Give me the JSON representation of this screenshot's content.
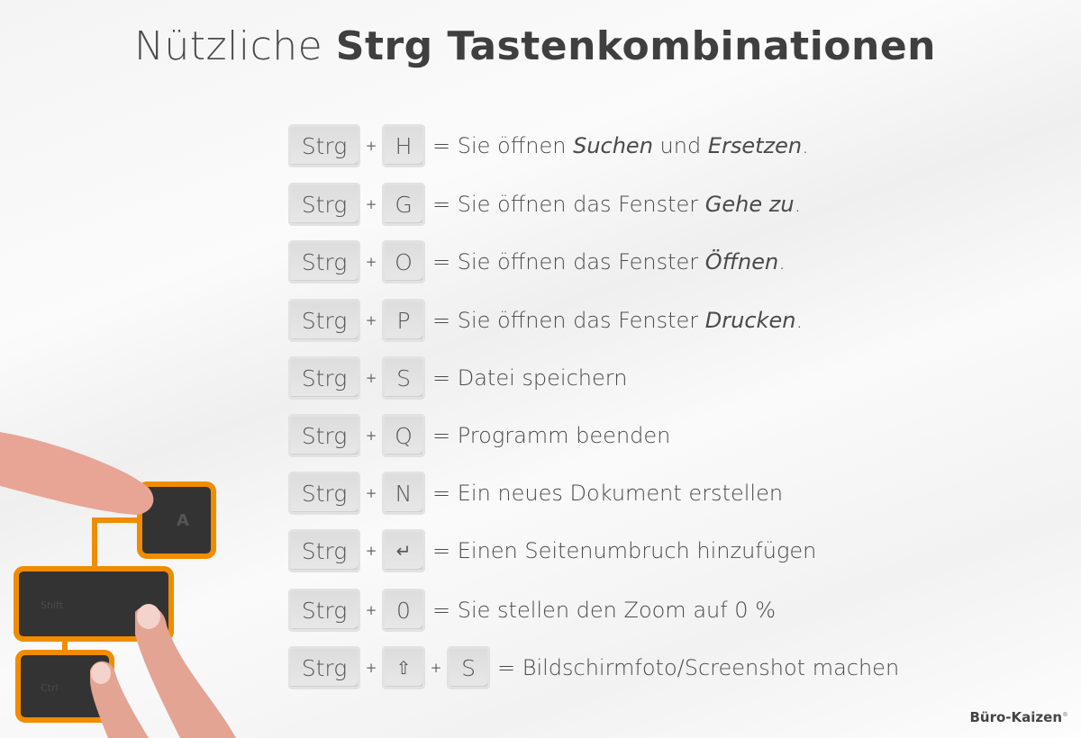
{
  "title": {
    "light": "Nützliche",
    "bold": "Strg Tastenkombinationen"
  },
  "shortcuts": [
    {
      "keys": [
        "Strg",
        "H"
      ],
      "desc": [
        "= Sie öffnen ",
        "Suchen",
        " und ",
        "Ersetzen",
        "."
      ]
    },
    {
      "keys": [
        "Strg",
        "G"
      ],
      "desc": [
        "= Sie öffnen das Fenster ",
        "Gehe zu",
        ".",
        "",
        ""
      ]
    },
    {
      "keys": [
        "Strg",
        "O"
      ],
      "desc": [
        "= Sie öffnen das Fenster ",
        "Öffnen",
        ".",
        "",
        ""
      ]
    },
    {
      "keys": [
        "Strg",
        "P"
      ],
      "desc": [
        "= Sie öffnen das Fenster ",
        "Drucken",
        ".",
        "",
        ""
      ]
    },
    {
      "keys": [
        "Strg",
        "S"
      ],
      "desc": [
        "= Datei speichern",
        "",
        "",
        "",
        ""
      ]
    },
    {
      "keys": [
        "Strg",
        "Q"
      ],
      "desc": [
        "= Programm beenden",
        "",
        "",
        "",
        ""
      ]
    },
    {
      "keys": [
        "Strg",
        "N"
      ],
      "desc": [
        "= Ein neues Dokument erstellen",
        "",
        "",
        "",
        ""
      ]
    },
    {
      "keys": [
        "Strg",
        "↵"
      ],
      "desc": [
        "= Einen Seitenumbruch hinzufügen",
        "",
        "",
        "",
        ""
      ]
    },
    {
      "keys": [
        "Strg",
        "0"
      ],
      "desc": [
        "= Sie stellen den Zoom auf 0 %",
        "",
        "",
        "",
        ""
      ]
    },
    {
      "keys": [
        "Strg",
        "⇧",
        "S"
      ],
      "desc": [
        "= Bildschirmfoto/Screenshot machen",
        "",
        "",
        "",
        ""
      ]
    }
  ],
  "plus": "+",
  "illustration": {
    "keys": [
      "A",
      "Shift",
      "Ctrl"
    ],
    "accent": "#f08c00"
  },
  "brand": {
    "name": "Büro-Kaizen",
    "mark": "®"
  }
}
